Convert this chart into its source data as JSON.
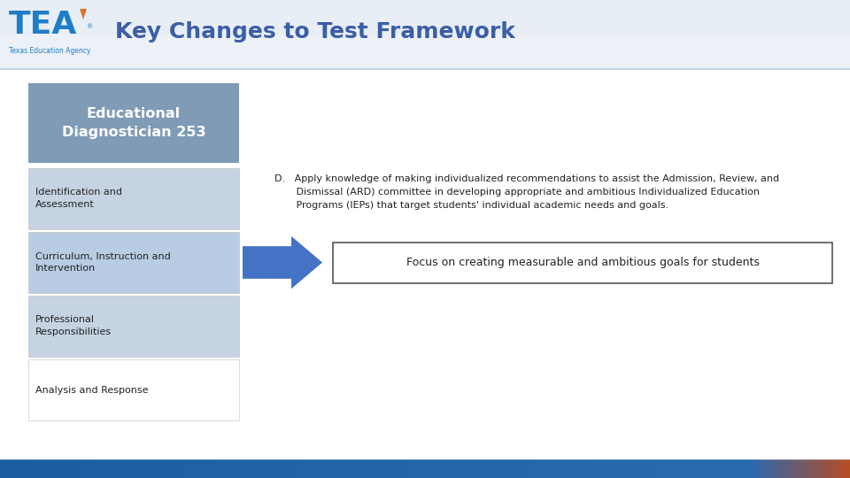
{
  "title": "Key Changes to Test Framework",
  "title_fontsize": 18,
  "title_color": "#3B5EA6",
  "bg_color": "#FFFFFF",
  "header_bg": "#E8EEF6",
  "header_line_color": "#C5D3E8",
  "box_header_label": "Educational\nDiagnostician 253",
  "box_header_bg": "#7F9BB5",
  "box_header_text_color": "#FFFFFF",
  "menu_items": [
    {
      "label": "Identification and\nAssessment",
      "bg": "#C5D3E3",
      "text": "#222222"
    },
    {
      "label": "Curriculum, Instruction and\nIntervention",
      "bg": "#B8CCE4",
      "text": "#222222"
    },
    {
      "label": "Professional\nResponsibilities",
      "bg": "#C5D3E3",
      "text": "#222222"
    },
    {
      "label": "Analysis and Response",
      "bg": "#FFFFFF",
      "text": "#222222"
    }
  ],
  "main_text": "D.   Apply knowledge of making individualized recommendations to assist the Admission, Review, and\n       Dismissal (ARD) committee in developing appropriate and ambitious Individualized Education\n       Programs (IEPs) that target students' individual academic needs and goals.",
  "arrow_text": "Focus on creating measurable and ambitious goals for students",
  "arrow_color": "#4472C4",
  "focus_box_border": "#555555",
  "footer_left_color": "#1A5EA0",
  "footer_right_color": "#B84C20"
}
